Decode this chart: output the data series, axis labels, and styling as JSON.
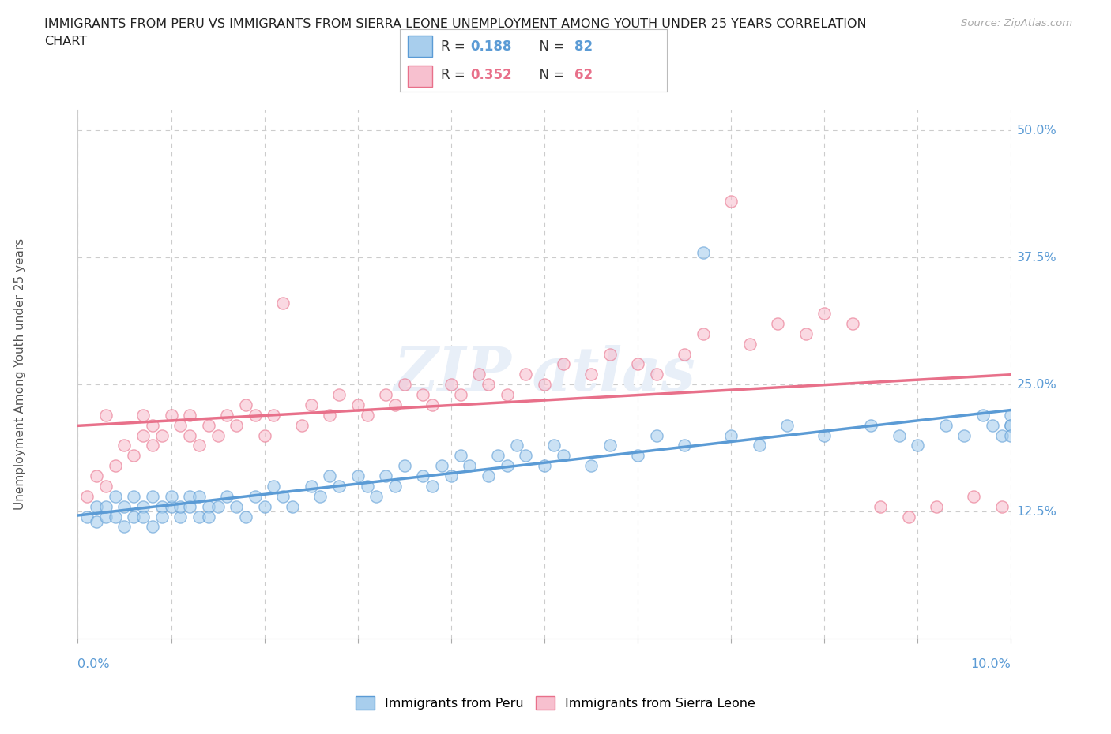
{
  "title_line1": "IMMIGRANTS FROM PERU VS IMMIGRANTS FROM SIERRA LEONE UNEMPLOYMENT AMONG YOUTH UNDER 25 YEARS CORRELATION",
  "title_line2": "CHART",
  "source": "Source: ZipAtlas.com",
  "xlim": [
    0.0,
    0.1
  ],
  "ylim": [
    0.0,
    0.52
  ],
  "ytick_positions": [
    0.0,
    0.125,
    0.25,
    0.375,
    0.5
  ],
  "ytick_right_labels": [
    "",
    "12.5%",
    "25.0%",
    "37.5%",
    "50.0%"
  ],
  "xtick_left_label": "0.0%",
  "xtick_right_label": "10.0%",
  "peru_color": "#A8CEED",
  "peru_edge": "#5B9BD5",
  "sierra_color": "#F7C0CF",
  "sierra_edge": "#E8708A",
  "peru_R": 0.188,
  "peru_N": 82,
  "sierra_R": 0.352,
  "sierra_N": 62,
  "legend_label_peru": "Immigrants from Peru",
  "legend_label_sierra": "Immigrants from Sierra Leone",
  "background_color": "#FFFFFF",
  "grid_color": "#CCCCCC",
  "watermark_color": "#E8EFF8",
  "title_color": "#222222",
  "axis_label_color": "#5B9BD5",
  "ylabel_text": "Unemployment Among Youth under 25 years",
  "peru_trend_color": "#5B9BD5",
  "sierra_trend_color": "#E8708A",
  "dashed_trend_color": "#BBBBBB",
  "peru_scatter_x": [
    0.001,
    0.002,
    0.002,
    0.003,
    0.003,
    0.004,
    0.004,
    0.005,
    0.005,
    0.006,
    0.006,
    0.007,
    0.007,
    0.008,
    0.008,
    0.009,
    0.009,
    0.01,
    0.01,
    0.011,
    0.011,
    0.012,
    0.012,
    0.013,
    0.013,
    0.014,
    0.014,
    0.015,
    0.016,
    0.017,
    0.018,
    0.019,
    0.02,
    0.021,
    0.022,
    0.023,
    0.025,
    0.026,
    0.027,
    0.028,
    0.03,
    0.031,
    0.032,
    0.033,
    0.034,
    0.035,
    0.037,
    0.038,
    0.039,
    0.04,
    0.041,
    0.042,
    0.044,
    0.045,
    0.046,
    0.047,
    0.048,
    0.05,
    0.051,
    0.052,
    0.055,
    0.057,
    0.06,
    0.062,
    0.065,
    0.067,
    0.07,
    0.073,
    0.076,
    0.08,
    0.085,
    0.088,
    0.09,
    0.093,
    0.095,
    0.097,
    0.098,
    0.099,
    0.1,
    0.1,
    0.1,
    0.1
  ],
  "peru_scatter_y": [
    0.12,
    0.13,
    0.115,
    0.12,
    0.13,
    0.14,
    0.12,
    0.11,
    0.13,
    0.12,
    0.14,
    0.13,
    0.12,
    0.11,
    0.14,
    0.13,
    0.12,
    0.13,
    0.14,
    0.12,
    0.13,
    0.14,
    0.13,
    0.12,
    0.14,
    0.13,
    0.12,
    0.13,
    0.14,
    0.13,
    0.12,
    0.14,
    0.13,
    0.15,
    0.14,
    0.13,
    0.15,
    0.14,
    0.16,
    0.15,
    0.16,
    0.15,
    0.14,
    0.16,
    0.15,
    0.17,
    0.16,
    0.15,
    0.17,
    0.16,
    0.18,
    0.17,
    0.16,
    0.18,
    0.17,
    0.19,
    0.18,
    0.17,
    0.19,
    0.18,
    0.17,
    0.19,
    0.18,
    0.2,
    0.19,
    0.38,
    0.2,
    0.19,
    0.21,
    0.2,
    0.21,
    0.2,
    0.19,
    0.21,
    0.2,
    0.22,
    0.21,
    0.2,
    0.21,
    0.22,
    0.21,
    0.2
  ],
  "sierra_scatter_x": [
    0.001,
    0.002,
    0.003,
    0.003,
    0.004,
    0.005,
    0.006,
    0.007,
    0.007,
    0.008,
    0.008,
    0.009,
    0.01,
    0.011,
    0.012,
    0.012,
    0.013,
    0.014,
    0.015,
    0.016,
    0.017,
    0.018,
    0.019,
    0.02,
    0.021,
    0.022,
    0.024,
    0.025,
    0.027,
    0.028,
    0.03,
    0.031,
    0.033,
    0.034,
    0.035,
    0.037,
    0.038,
    0.04,
    0.041,
    0.043,
    0.044,
    0.046,
    0.048,
    0.05,
    0.052,
    0.055,
    0.057,
    0.06,
    0.062,
    0.065,
    0.067,
    0.07,
    0.072,
    0.075,
    0.078,
    0.08,
    0.083,
    0.086,
    0.089,
    0.092,
    0.096,
    0.099
  ],
  "sierra_scatter_y": [
    0.14,
    0.16,
    0.15,
    0.22,
    0.17,
    0.19,
    0.18,
    0.2,
    0.22,
    0.19,
    0.21,
    0.2,
    0.22,
    0.21,
    0.2,
    0.22,
    0.19,
    0.21,
    0.2,
    0.22,
    0.21,
    0.23,
    0.22,
    0.2,
    0.22,
    0.33,
    0.21,
    0.23,
    0.22,
    0.24,
    0.23,
    0.22,
    0.24,
    0.23,
    0.25,
    0.24,
    0.23,
    0.25,
    0.24,
    0.26,
    0.25,
    0.24,
    0.26,
    0.25,
    0.27,
    0.26,
    0.28,
    0.27,
    0.26,
    0.28,
    0.3,
    0.43,
    0.29,
    0.31,
    0.3,
    0.32,
    0.31,
    0.13,
    0.12,
    0.13,
    0.14,
    0.13
  ]
}
